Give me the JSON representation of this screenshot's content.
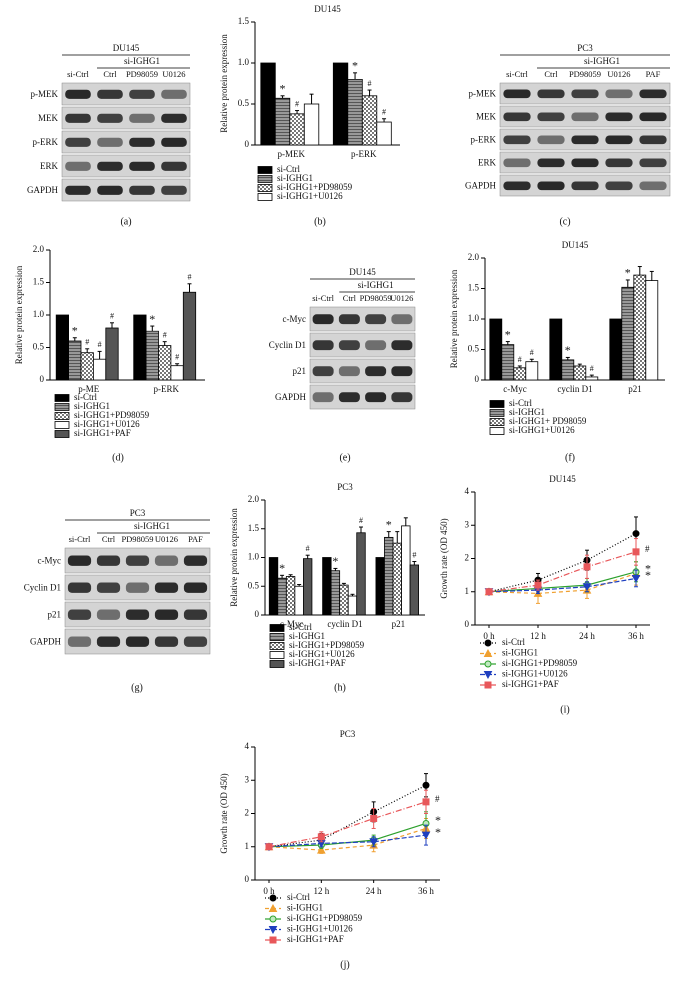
{
  "chart_data": [
    {
      "type": "bar",
      "title": "DU145",
      "label": "(b)",
      "y_label": "Relative protein expression",
      "categories": [
        "p-MEK",
        "p-ERK"
      ],
      "ylim": [
        0,
        1.5
      ],
      "yticks": [
        0,
        0.5,
        {
          "value": 1,
          "label": "1.0"
        },
        1.5
      ],
      "series": [
        {
          "name": "si-Ctrl",
          "color": "#000000",
          "fill": "solid",
          "values": [
            1,
            1
          ],
          "errors": [
            0,
            0
          ],
          "annotations": [
            null,
            null
          ]
        },
        {
          "name": "si-IGHG1",
          "color": "#555555",
          "fill": "hatch",
          "values": [
            0.57,
            0.8
          ],
          "errors": [
            0.03,
            0.08
          ],
          "annotations": [
            "*",
            "*"
          ]
        },
        {
          "name": "si-IGHG1+PD98059",
          "color": "#777777",
          "fill": "checker",
          "values": [
            0.38,
            0.6
          ],
          "errors": [
            0.04,
            0.07
          ],
          "annotations": [
            "#",
            "#"
          ]
        },
        {
          "name": "si-IGHG1+U0126",
          "color": "#ffffff",
          "fill": "solid",
          "values": [
            0.5,
            0.28
          ],
          "errors": [
            0.12,
            0.04
          ],
          "annotations": [
            null,
            "#"
          ]
        }
      ]
    },
    {
      "type": "bar",
      "label": "(d)",
      "y_label": "Relative protein expression",
      "categories": [
        "p-ME",
        "p-ERK"
      ],
      "ylim": [
        0,
        2
      ],
      "yticks": [
        0,
        0.5,
        {
          "value": 1,
          "label": "1.0"
        },
        1.5,
        {
          "value": 2,
          "label": "2.0"
        }
      ],
      "series": [
        {
          "name": "si-Ctrl",
          "color": "#000000",
          "fill": "solid",
          "values": [
            1,
            1
          ],
          "errors": [
            0,
            0
          ],
          "annotations": [
            null,
            null
          ]
        },
        {
          "name": "si-IGHG1",
          "color": "#555555",
          "fill": "hatch",
          "values": [
            0.6,
            0.75
          ],
          "errors": [
            0.05,
            0.08
          ],
          "annotations": [
            "*",
            "*"
          ]
        },
        {
          "name": "si-IGHG1+PD98059",
          "color": "#777777",
          "fill": "checker",
          "values": [
            0.42,
            0.53
          ],
          "errors": [
            0.06,
            0.06
          ],
          "annotations": [
            "#",
            "#"
          ]
        },
        {
          "name": "si-IGHG1+U0126",
          "color": "#ffffff",
          "fill": "solid",
          "values": [
            0.32,
            0.22
          ],
          "errors": [
            0.12,
            0.03
          ],
          "annotations": [
            "#",
            "#"
          ]
        },
        {
          "name": "si-IGHG1+PAF",
          "color": "#555555",
          "fill": "solid",
          "values": [
            0.8,
            1.35
          ],
          "errors": [
            0.08,
            0.13
          ],
          "annotations": [
            "#",
            "#"
          ]
        }
      ]
    },
    {
      "type": "bar",
      "title": "DU145",
      "label": "(f)",
      "y_label": "Relative protein expression",
      "categories": [
        "c-Myc",
        "cyclin D1",
        "p21"
      ],
      "ylim": [
        0,
        2
      ],
      "yticks": [
        0,
        0.5,
        {
          "value": 1,
          "label": "1.0"
        },
        1.5,
        {
          "value": 2,
          "label": "2.0"
        }
      ],
      "series": [
        {
          "name": "si-Ctrl",
          "color": "#000000",
          "fill": "solid",
          "values": [
            1,
            1,
            1
          ],
          "errors": [
            0,
            0,
            0
          ],
          "annotations": [
            null,
            null,
            null
          ]
        },
        {
          "name": "si-IGHG1",
          "color": "#555555",
          "fill": "hatch",
          "values": [
            0.58,
            0.33,
            1.52
          ],
          "errors": [
            0.05,
            0.04,
            0.12
          ],
          "annotations": [
            "*",
            "*",
            "*"
          ]
        },
        {
          "name": "si-IGHG1+ PD98059",
          "color": "#777777",
          "fill": "checker",
          "values": [
            0.2,
            0.23,
            1.72
          ],
          "errors": [
            0.03,
            0.03,
            0.14
          ],
          "annotations": [
            "#",
            null,
            null
          ]
        },
        {
          "name": "si-IGHG1+U0126",
          "color": "#ffffff",
          "fill": "solid",
          "values": [
            0.3,
            0.05,
            1.63
          ],
          "errors": [
            0.04,
            0.03,
            0.15
          ],
          "annotations": [
            "#",
            "#",
            null
          ]
        }
      ]
    },
    {
      "type": "bar",
      "title": "PC3",
      "label": "(h)",
      "y_label": "Relative protein expression",
      "categories": [
        "c-Myc",
        "cyclin D1",
        "p21"
      ],
      "ylim": [
        0,
        2
      ],
      "yticks": [
        0,
        0.5,
        {
          "value": 1,
          "label": "1.0"
        },
        1.5,
        {
          "value": 2,
          "label": "2.0"
        }
      ],
      "series": [
        {
          "name": "si-Ctrl",
          "color": "#000000",
          "fill": "solid",
          "values": [
            1,
            1,
            1
          ],
          "errors": [
            0,
            0,
            0
          ],
          "annotations": [
            null,
            null,
            null
          ]
        },
        {
          "name": "si-IGHG1",
          "color": "#555555",
          "fill": "hatch",
          "values": [
            0.64,
            0.77,
            1.35
          ],
          "errors": [
            0.05,
            0.04,
            0.1
          ],
          "annotations": [
            "*",
            "*",
            "*"
          ]
        },
        {
          "name": "si-IGHG1+PD98059",
          "color": "#777777",
          "fill": "checker",
          "values": [
            0.67,
            0.52,
            1.25
          ],
          "errors": [
            0.03,
            0.03,
            0.2
          ],
          "annotations": [
            null,
            null,
            null
          ]
        },
        {
          "name": "si-IGHG1+U0126",
          "color": "#ffffff",
          "fill": "solid",
          "values": [
            0.5,
            0.33,
            1.55
          ],
          "errors": [
            0.03,
            0.03,
            0.14
          ],
          "annotations": [
            null,
            null,
            null
          ]
        },
        {
          "name": "si-IGHG1+PAF",
          "color": "#555555",
          "fill": "solid",
          "values": [
            0.98,
            1.43,
            0.87
          ],
          "errors": [
            0.06,
            0.1,
            0.06
          ],
          "annotations": [
            "#",
            "#",
            "#"
          ]
        }
      ]
    },
    {
      "type": "line",
      "title": "DU145",
      "label": "(i)",
      "y_label": "Growth rate (OD 450)",
      "categories": [
        "0 h",
        "12 h",
        "24 h",
        "36 h"
      ],
      "ylim": [
        0,
        4
      ],
      "yticks": [
        0,
        1,
        2,
        3,
        4
      ],
      "series": [
        {
          "name": "si-Ctrl",
          "color": "#000000",
          "marker": "circle",
          "dash": "1,2",
          "values": [
            1,
            1.35,
            1.95,
            2.75
          ],
          "errors": [
            0,
            0.2,
            0.3,
            0.5
          ]
        },
        {
          "name": "si-IGHG1",
          "color": "#f0a030",
          "marker": "triangle",
          "dash": "4,3",
          "values": [
            1,
            0.95,
            1.05,
            1.55
          ],
          "errors": [
            0,
            0.3,
            0.25,
            0.35
          ]
        },
        {
          "name": "si-IGHG1+PD98059",
          "color": "#2ca02c",
          "marker": "circle-open",
          "dash": "none",
          "values": [
            1,
            1.1,
            1.2,
            1.6
          ],
          "errors": [
            0,
            0.15,
            0.2,
            0.3
          ],
          "annotation": "*"
        },
        {
          "name": "si-IGHG1+U0126",
          "color": "#1f3fbf",
          "marker": "triangle-down",
          "dash": "5,2",
          "values": [
            1,
            1.05,
            1.15,
            1.4
          ],
          "errors": [
            0,
            0.1,
            0.15,
            0.25
          ],
          "annotation": "*"
        },
        {
          "name": "si-IGHG1+PAF",
          "color": "#e8575a",
          "marker": "square",
          "dash": "6,2,1,2",
          "values": [
            1,
            1.2,
            1.75,
            2.2
          ],
          "errors": [
            0,
            0.15,
            0.35,
            0.4
          ],
          "annotation": "#"
        }
      ]
    },
    {
      "type": "line",
      "title": "PC3",
      "label": "(j)",
      "y_label": "Growth rate (OD 450)",
      "categories": [
        "0 h",
        "12 h",
        "24 h",
        "36 h"
      ],
      "ylim": [
        0,
        4
      ],
      "yticks": [
        0,
        1,
        2,
        3,
        4
      ],
      "series": [
        {
          "name": "si-Ctrl",
          "color": "#000000",
          "marker": "circle",
          "dash": "1,2",
          "values": [
            1,
            1.2,
            2.05,
            2.85
          ],
          "errors": [
            0,
            0.2,
            0.3,
            0.35
          ]
        },
        {
          "name": "si-IGHG1",
          "color": "#f0a030",
          "marker": "triangle",
          "dash": "4,3",
          "values": [
            1,
            0.9,
            1.05,
            1.55
          ],
          "errors": [
            0,
            0.1,
            0.2,
            0.3
          ]
        },
        {
          "name": "si-IGHG1+PD98059",
          "color": "#2ca02c",
          "marker": "circle-open",
          "dash": "none",
          "values": [
            1,
            1.05,
            1.2,
            1.7
          ],
          "errors": [
            0,
            0.1,
            0.15,
            0.35
          ],
          "annotation": "*"
        },
        {
          "name": "si-IGHG1+U0126",
          "color": "#1f3fbf",
          "marker": "triangle-down",
          "dash": "5,2",
          "values": [
            1,
            1.1,
            1.15,
            1.35
          ],
          "errors": [
            0,
            0.1,
            0.15,
            0.3
          ],
          "annotation": "*"
        },
        {
          "name": "si-IGHG1+PAF",
          "color": "#e8575a",
          "marker": "square",
          "dash": "6,2,1,2",
          "values": [
            1,
            1.3,
            1.85,
            2.35
          ],
          "errors": [
            0,
            0.15,
            0.3,
            0.35
          ],
          "annotation": "#"
        }
      ]
    }
  ],
  "blots": [
    {
      "title": "DU145",
      "group": "si-IGHG1",
      "lanes": [
        "si-Ctrl",
        "Ctrl",
        "PD98059",
        "U0126"
      ],
      "rows": [
        "p-MEK",
        "MEK",
        "p-ERK",
        "ERK",
        "GAPDH"
      ],
      "label": "(a)"
    },
    {
      "title": "PC3",
      "group": "si-IGHG1",
      "lanes": [
        "si-Ctrl",
        "Ctrl",
        "PD98059",
        "U0126",
        "PAF"
      ],
      "rows": [
        "p-MEK",
        "MEK",
        "p-ERK",
        "ERK",
        "GAPDH"
      ],
      "label": "(c)"
    },
    {
      "title": "DU145",
      "group": "si-IGHG1",
      "lanes": [
        "si-Ctrl",
        "Ctrl",
        "PD98059",
        "U0126"
      ],
      "rows": [
        "c-Myc",
        "Cyclin D1",
        "p21",
        "GAPDH"
      ],
      "label": "(e)"
    },
    {
      "title": "PC3",
      "group": "si-IGHG1",
      "lanes": [
        "si-Ctrl",
        "Ctrl",
        "PD98059",
        "U0126",
        "PAF"
      ],
      "rows": [
        "c-Myc",
        "Cyclin D1",
        "p21",
        "GAPDH"
      ],
      "label": "(g)"
    }
  ]
}
